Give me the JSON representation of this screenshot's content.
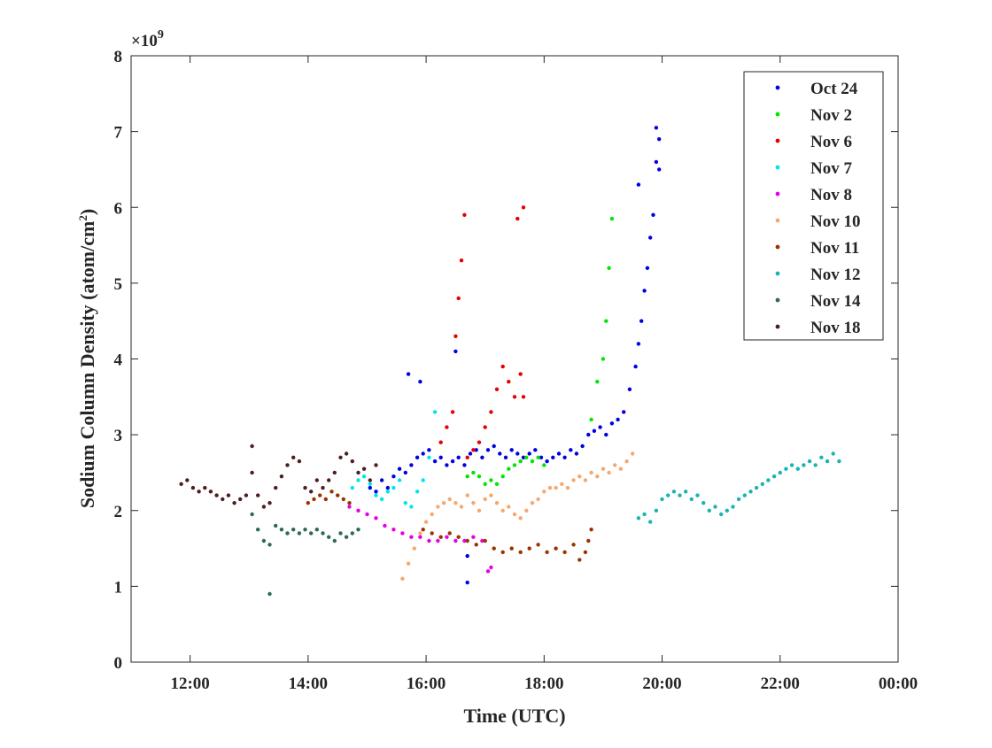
{
  "chart_data": {
    "type": "scatter",
    "title": "",
    "xlabel": "Time (UTC)",
    "ylabel": "Sodium Column Density (atom/cm²)",
    "ylabel_main": "Sodium Column Density (atom/cm",
    "ylabel_sup": "2",
    "ylabel_close": ")",
    "y_exponent_base": "×10",
    "y_exponent_power": "9",
    "xlim": [
      11.0,
      24.0
    ],
    "ylim": [
      0,
      8
    ],
    "x_ticks": [
      12,
      14,
      16,
      18,
      20,
      22,
      24
    ],
    "x_tick_labels": [
      "12:00",
      "14:00",
      "16:00",
      "18:00",
      "20:00",
      "22:00",
      "00:00"
    ],
    "y_ticks": [
      0,
      1,
      2,
      3,
      4,
      5,
      6,
      7,
      8
    ],
    "y_tick_labels": [
      "0",
      "1",
      "2",
      "3",
      "4",
      "5",
      "6",
      "7",
      "8"
    ],
    "legend_position": "top-right",
    "grid": false,
    "series": [
      {
        "name": "Oct 24",
        "color": "#0000e6",
        "x": [
          15.05,
          15.15,
          15.25,
          15.35,
          15.45,
          15.55,
          15.65,
          15.75,
          15.85,
          15.95,
          16.05,
          16.15,
          16.25,
          16.35,
          16.45,
          16.55,
          16.65,
          16.75,
          16.85,
          16.95,
          17.05,
          17.15,
          17.25,
          17.35,
          17.45,
          17.55,
          17.65,
          17.75,
          17.85,
          17.95,
          18.05,
          18.15,
          18.25,
          18.35,
          18.45,
          18.55,
          18.65,
          18.75,
          18.85,
          18.95,
          19.05,
          19.15,
          19.25,
          19.35,
          19.45,
          19.55,
          19.6,
          19.65,
          19.7,
          19.75,
          19.8,
          19.85,
          19.9,
          19.95,
          15.7,
          15.9,
          16.5,
          16.7,
          16.7,
          19.6,
          19.9,
          19.95
        ],
        "y": [
          2.3,
          2.25,
          2.4,
          2.3,
          2.45,
          2.55,
          2.5,
          2.6,
          2.7,
          2.75,
          2.8,
          2.65,
          2.7,
          2.6,
          2.65,
          2.7,
          2.6,
          2.75,
          2.8,
          2.7,
          2.8,
          2.85,
          2.75,
          2.7,
          2.8,
          2.75,
          2.7,
          2.75,
          2.8,
          2.7,
          2.65,
          2.7,
          2.75,
          2.7,
          2.8,
          2.75,
          2.85,
          3.0,
          3.05,
          3.1,
          3.0,
          3.15,
          3.2,
          3.3,
          3.6,
          3.9,
          4.2,
          4.5,
          4.9,
          5.2,
          5.6,
          5.9,
          6.6,
          6.9,
          3.8,
          3.7,
          4.1,
          1.4,
          1.05,
          6.3,
          7.05,
          6.5
        ]
      },
      {
        "name": "Nov 2",
        "color": "#00e600",
        "x": [
          16.7,
          16.8,
          16.9,
          17.0,
          17.1,
          17.2,
          17.3,
          17.4,
          17.5,
          17.6,
          17.7,
          17.8,
          17.9,
          18.0,
          18.8,
          18.9,
          19.0,
          19.05,
          19.1,
          19.15
        ],
        "y": [
          2.45,
          2.5,
          2.45,
          2.35,
          2.4,
          2.35,
          2.45,
          2.55,
          2.6,
          2.65,
          2.7,
          2.65,
          2.7,
          2.6,
          3.2,
          3.7,
          4.0,
          4.5,
          5.2,
          5.85
        ]
      },
      {
        "name": "Nov 6",
        "color": "#e60000",
        "x": [
          16.25,
          16.35,
          16.45,
          16.5,
          16.55,
          16.6,
          16.65,
          16.7,
          16.8,
          16.9,
          17.0,
          17.1,
          17.2,
          17.3,
          17.4,
          17.5,
          17.6,
          17.65,
          17.55,
          17.65
        ],
        "y": [
          2.9,
          3.1,
          3.3,
          4.3,
          4.8,
          5.3,
          5.9,
          2.7,
          2.8,
          2.9,
          3.1,
          3.3,
          3.6,
          3.9,
          3.7,
          3.5,
          3.8,
          3.5,
          5.85,
          6.0
        ]
      },
      {
        "name": "Nov 7",
        "color": "#00e6e6",
        "x": [
          14.75,
          14.85,
          14.95,
          15.05,
          15.15,
          15.25,
          15.35,
          15.45,
          15.55,
          15.65,
          15.75,
          15.85,
          15.95,
          16.05,
          16.15
        ],
        "y": [
          2.3,
          2.4,
          2.45,
          2.35,
          2.2,
          2.15,
          2.25,
          2.3,
          2.4,
          2.1,
          2.05,
          2.25,
          2.4,
          2.7,
          3.3
        ]
      },
      {
        "name": "Nov 8",
        "color": "#e600e6",
        "x": [
          14.7,
          14.85,
          15.0,
          15.15,
          15.3,
          15.45,
          15.6,
          15.75,
          15.9,
          16.05,
          16.2,
          16.35,
          16.5,
          16.65,
          16.8,
          16.95,
          17.05,
          17.1
        ],
        "y": [
          2.05,
          2.0,
          1.95,
          1.9,
          1.8,
          1.75,
          1.7,
          1.65,
          1.65,
          1.6,
          1.6,
          1.65,
          1.6,
          1.6,
          1.65,
          1.6,
          1.2,
          1.25
        ]
      },
      {
        "name": "Nov 10",
        "color": "#f5a86e",
        "x": [
          15.6,
          15.7,
          15.8,
          15.9,
          16.0,
          16.1,
          16.2,
          16.3,
          16.4,
          16.5,
          16.6,
          16.7,
          16.8,
          16.9,
          17.0,
          17.1,
          17.2,
          17.3,
          17.4,
          17.5,
          17.6,
          17.7,
          17.8,
          17.9,
          18.0,
          18.1,
          18.2,
          18.3,
          18.4,
          18.5,
          18.6,
          18.7,
          18.8,
          18.9,
          19.0,
          19.1,
          19.2,
          19.3,
          19.4,
          19.5
        ],
        "y": [
          1.1,
          1.3,
          1.5,
          1.7,
          1.85,
          1.95,
          2.05,
          2.1,
          2.15,
          2.1,
          2.05,
          2.2,
          2.1,
          2.0,
          2.15,
          2.2,
          2.1,
          2.0,
          2.05,
          1.95,
          1.9,
          2.0,
          2.1,
          2.15,
          2.25,
          2.3,
          2.3,
          2.35,
          2.3,
          2.4,
          2.45,
          2.4,
          2.5,
          2.45,
          2.55,
          2.5,
          2.6,
          2.55,
          2.65,
          2.75
        ]
      },
      {
        "name": "Nov 11",
        "color": "#993300",
        "x": [
          14.0,
          14.1,
          14.2,
          14.3,
          14.4,
          14.5,
          14.6,
          14.7,
          15.95,
          16.1,
          16.25,
          16.4,
          16.55,
          16.7,
          16.85,
          17.0,
          17.15,
          17.3,
          17.45,
          17.6,
          17.75,
          17.9,
          18.05,
          18.2,
          18.35,
          18.5,
          18.6,
          18.7,
          18.75,
          18.8
        ],
        "y": [
          2.1,
          2.15,
          2.2,
          2.15,
          2.25,
          2.2,
          2.15,
          2.1,
          1.75,
          1.7,
          1.65,
          1.7,
          1.65,
          1.6,
          1.55,
          1.6,
          1.5,
          1.45,
          1.5,
          1.45,
          1.5,
          1.55,
          1.45,
          1.5,
          1.45,
          1.55,
          1.35,
          1.45,
          1.6,
          1.75
        ]
      },
      {
        "name": "Nov 12",
        "color": "#1ab3b3",
        "x": [
          19.6,
          19.7,
          19.8,
          19.9,
          20.0,
          20.1,
          20.2,
          20.3,
          20.4,
          20.5,
          20.6,
          20.7,
          20.8,
          20.9,
          21.0,
          21.1,
          21.2,
          21.3,
          21.4,
          21.5,
          21.6,
          21.7,
          21.8,
          21.9,
          22.0,
          22.1,
          22.2,
          22.3,
          22.4,
          22.5,
          22.6,
          22.7,
          22.8,
          22.9,
          23.0
        ],
        "y": [
          1.9,
          1.95,
          1.85,
          2.0,
          2.15,
          2.2,
          2.25,
          2.2,
          2.25,
          2.15,
          2.2,
          2.1,
          2.0,
          2.05,
          1.95,
          2.0,
          2.05,
          2.15,
          2.2,
          2.25,
          2.3,
          2.35,
          2.4,
          2.45,
          2.5,
          2.55,
          2.6,
          2.55,
          2.6,
          2.65,
          2.6,
          2.7,
          2.65,
          2.75,
          2.65
        ]
      },
      {
        "name": "Nov 14",
        "color": "#2d6b4f",
        "x": [
          13.05,
          13.15,
          13.25,
          13.35,
          13.45,
          13.55,
          13.65,
          13.75,
          13.85,
          13.95,
          14.05,
          14.15,
          14.25,
          14.35,
          14.45,
          14.55,
          14.65,
          14.75,
          14.85,
          13.35
        ],
        "y": [
          1.95,
          1.75,
          1.6,
          1.55,
          1.8,
          1.75,
          1.7,
          1.75,
          1.7,
          1.75,
          1.7,
          1.75,
          1.7,
          1.65,
          1.6,
          1.7,
          1.65,
          1.7,
          1.75,
          0.9
        ]
      },
      {
        "name": "Nov 18",
        "color": "#4d1f1f",
        "x": [
          11.85,
          11.95,
          12.05,
          12.15,
          12.25,
          12.35,
          12.45,
          12.55,
          12.65,
          12.75,
          12.85,
          12.95,
          13.05,
          13.15,
          13.25,
          13.35,
          13.45,
          13.55,
          13.65,
          13.75,
          13.85,
          13.95,
          14.05,
          14.15,
          14.25,
          14.35,
          14.45,
          14.55,
          14.65,
          14.75,
          14.85,
          14.95,
          15.05,
          15.15,
          13.05
        ],
        "y": [
          2.35,
          2.4,
          2.3,
          2.25,
          2.3,
          2.25,
          2.2,
          2.15,
          2.2,
          2.1,
          2.15,
          2.2,
          2.5,
          2.2,
          2.05,
          2.1,
          2.3,
          2.45,
          2.6,
          2.7,
          2.65,
          2.3,
          2.25,
          2.4,
          2.3,
          2.4,
          2.5,
          2.7,
          2.75,
          2.65,
          2.5,
          2.55,
          2.4,
          2.6,
          2.85
        ]
      }
    ]
  }
}
